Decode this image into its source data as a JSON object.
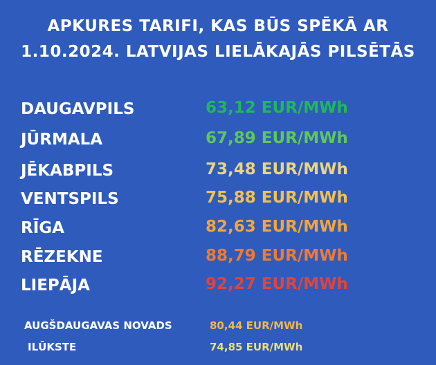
{
  "header": {
    "title_lines": [
      "APKURES TARIFI, KAS BŪS SPĒKĀ AR",
      "1.10.2024. LATVIJAS LIELĀKAJĀS PILSĒTĀS"
    ]
  },
  "rows": [
    {
      "city": "DAUGAVPILS",
      "tariff": "63,12 EUR/MWh",
      "color": "#1fb85a"
    },
    {
      "city": "JŪRMALA",
      "tariff": "67,89 EUR/MWh",
      "color": "#5ec85a"
    },
    {
      "city": "JĒKABPILS",
      "tariff": "73,48 EUR/MWh",
      "color": "#e9d67e"
    },
    {
      "city": "VENTSPILS",
      "tariff": "75,88 EUR/MWh",
      "color": "#f3c04e"
    },
    {
      "city": "RĪGA",
      "tariff": "82,63 EUR/MWh",
      "color": "#f3a53a"
    },
    {
      "city": "RĒZEKNE",
      "tariff": "88,79 EUR/MWh",
      "color": "#ef7b2e"
    },
    {
      "city": "LIEPĀJA",
      "tariff": "92,27 EUR/MWh",
      "color": "#e0443a"
    }
  ],
  "footer_rows": [
    {
      "name": "AUGŠDAUGAVAS NOVADS",
      "tariff": "80,44 EUR/MWh",
      "color": "#f2b84a"
    },
    {
      "name": "ILŪKSTE",
      "tariff": "74,85 EUR/MWh",
      "color": "#e9e07c"
    }
  ]
}
